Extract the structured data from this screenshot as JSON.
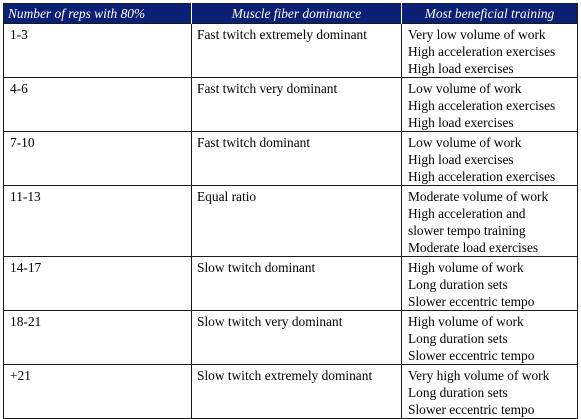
{
  "table": {
    "headers": [
      "Number of reps with 80%",
      "Muscle fiber dominance",
      "Most beneficial training"
    ],
    "rows": [
      {
        "reps": "1-3",
        "dominance": "Fast twitch extremely dominant",
        "training": [
          "Very low volume of work",
          "High acceleration exercises",
          "High load exercises"
        ]
      },
      {
        "reps": "4-6",
        "dominance": "Fast twitch very dominant",
        "training": [
          "Low volume of work",
          "High acceleration exercises",
          "High load exercises"
        ]
      },
      {
        "reps": "7-10",
        "dominance": "Fast twitch dominant",
        "training": [
          "Low volume of work",
          "High load exercises",
          "High acceleration exercises"
        ]
      },
      {
        "reps": "11-13",
        "dominance": "Equal ratio",
        "training": [
          "Moderate volume of work",
          "High acceleration and",
          "slower tempo training",
          "Moderate load exercises"
        ]
      },
      {
        "reps": "14-17",
        "dominance": "Slow twitch dominant",
        "training": [
          "High volume of work",
          "Long duration sets",
          "Slower eccentric tempo"
        ]
      },
      {
        "reps": "18-21",
        "dominance": "Slow twitch very dominant",
        "training": [
          "High volume of work",
          "Long duration sets",
          "Slower eccentric tempo"
        ]
      },
      {
        "reps": "+21",
        "dominance": "Slow twitch extremely dominant",
        "training": [
          "Very high volume of work",
          "Long duration sets",
          "Slower eccentric tempo"
        ]
      }
    ]
  }
}
